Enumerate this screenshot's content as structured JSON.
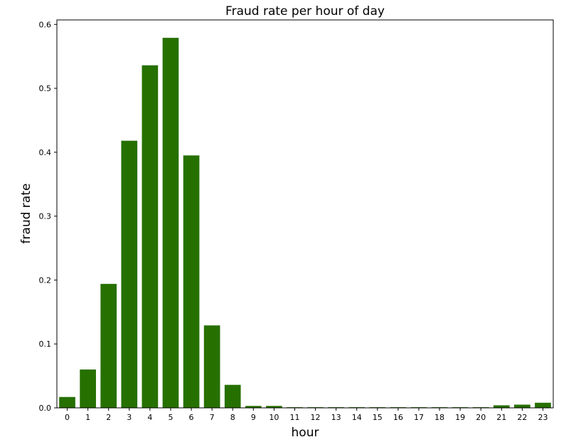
{
  "chart_data": {
    "type": "bar",
    "title": "Fraud rate per hour of day",
    "xlabel": "hour",
    "ylabel": "fraud rate",
    "categories": [
      "0",
      "1",
      "2",
      "3",
      "4",
      "5",
      "6",
      "7",
      "8",
      "9",
      "10",
      "11",
      "12",
      "13",
      "14",
      "15",
      "16",
      "17",
      "18",
      "19",
      "20",
      "21",
      "22",
      "23"
    ],
    "values": [
      0.017,
      0.06,
      0.194,
      0.418,
      0.536,
      0.579,
      0.395,
      0.129,
      0.036,
      0.003,
      0.003,
      0.001,
      0.001,
      0.001,
      0.001,
      0.001,
      0.001,
      0.001,
      0.001,
      0.001,
      0.001,
      0.004,
      0.005,
      0.008
    ],
    "ylim": [
      0,
      0.607
    ],
    "yticks": [
      "0.0",
      "0.1",
      "0.2",
      "0.3",
      "0.4",
      "0.5",
      "0.6"
    ],
    "ytick_values": [
      0.0,
      0.1,
      0.2,
      0.3,
      0.4,
      0.5,
      0.6
    ],
    "grid": false,
    "bar_color": "#267000"
  }
}
